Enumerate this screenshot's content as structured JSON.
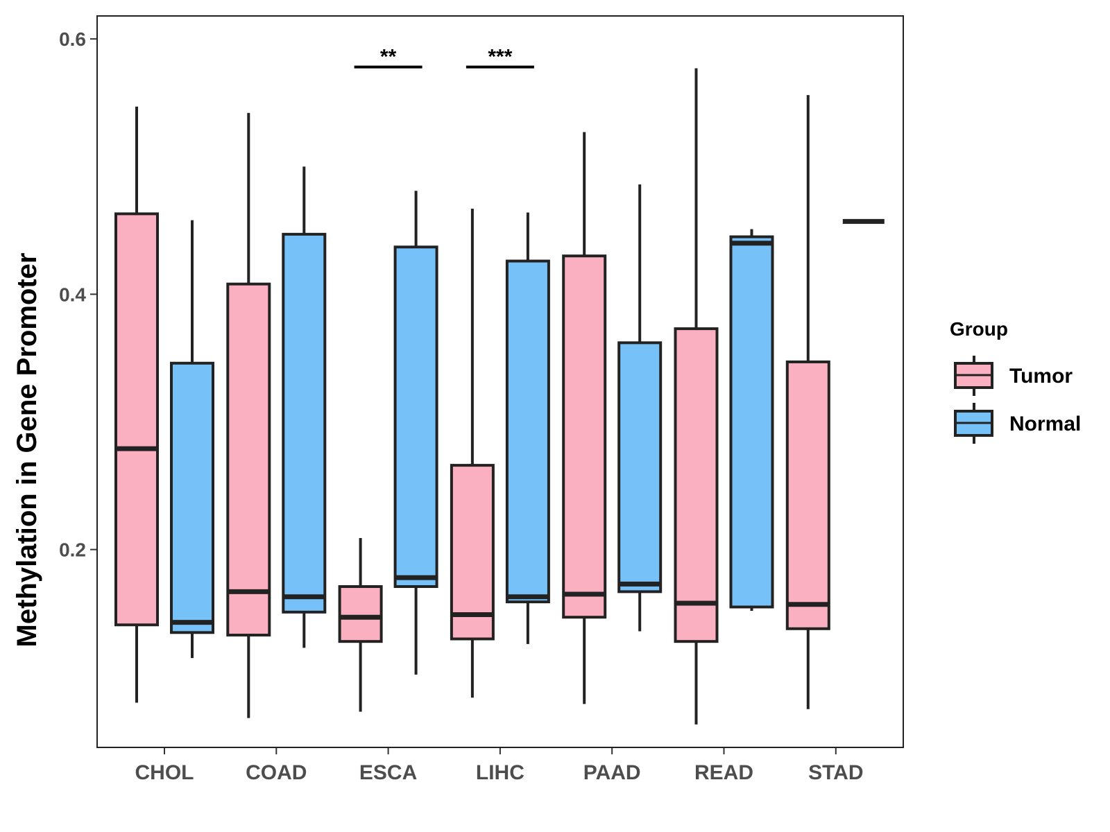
{
  "chart_data": {
    "type": "boxplot",
    "title": "",
    "xlabel": "",
    "ylabel": "Methylation in Gene Promoter",
    "ylim": [
      0.045,
      0.618
    ],
    "y_ticks": [
      0.2,
      0.4,
      0.6
    ],
    "y_tick_labels": [
      "0.2",
      "0.4",
      "0.6"
    ],
    "categories": [
      "CHOL",
      "COAD",
      "ESCA",
      "LIHC",
      "PAAD",
      "READ",
      "STAD"
    ],
    "legend": {
      "title": "Group",
      "position": "right",
      "items": [
        {
          "label": "Tumor",
          "color": "#fbb0c1"
        },
        {
          "label": "Normal",
          "color": "#77c1f9"
        }
      ]
    },
    "series": [
      {
        "name": "Tumor",
        "color": "#fbb0c1",
        "boxes": [
          {
            "category": "CHOL",
            "min": 0.08,
            "q1": 0.141,
            "median": 0.279,
            "q3": 0.463,
            "max": 0.547
          },
          {
            "category": "COAD",
            "min": 0.068,
            "q1": 0.133,
            "median": 0.167,
            "q3": 0.408,
            "max": 0.542
          },
          {
            "category": "ESCA",
            "min": 0.073,
            "q1": 0.128,
            "median": 0.147,
            "q3": 0.171,
            "max": 0.209
          },
          {
            "category": "LIHC",
            "min": 0.084,
            "q1": 0.13,
            "median": 0.149,
            "q3": 0.266,
            "max": 0.467
          },
          {
            "category": "PAAD",
            "min": 0.079,
            "q1": 0.147,
            "median": 0.165,
            "q3": 0.43,
            "max": 0.527
          },
          {
            "category": "READ",
            "min": 0.063,
            "q1": 0.128,
            "median": 0.158,
            "q3": 0.373,
            "max": 0.577
          },
          {
            "category": "STAD",
            "min": 0.075,
            "q1": 0.138,
            "median": 0.157,
            "q3": 0.347,
            "max": 0.556
          }
        ]
      },
      {
        "name": "Normal",
        "color": "#77c1f9",
        "boxes": [
          {
            "category": "CHOL",
            "min": 0.115,
            "q1": 0.135,
            "median": 0.143,
            "q3": 0.346,
            "max": 0.458
          },
          {
            "category": "COAD",
            "min": 0.123,
            "q1": 0.151,
            "median": 0.163,
            "q3": 0.447,
            "max": 0.5
          },
          {
            "category": "ESCA",
            "min": 0.102,
            "q1": 0.171,
            "median": 0.178,
            "q3": 0.437,
            "max": 0.481
          },
          {
            "category": "LIHC",
            "min": 0.126,
            "q1": 0.159,
            "median": 0.163,
            "q3": 0.426,
            "max": 0.464
          },
          {
            "category": "PAAD",
            "min": 0.136,
            "q1": 0.167,
            "median": 0.173,
            "q3": 0.362,
            "max": 0.486
          },
          {
            "category": "READ",
            "min": 0.152,
            "q1": 0.155,
            "median": 0.44,
            "q3": 0.445,
            "max": 0.451
          },
          {
            "category": "STAD",
            "min": 0.457,
            "q1": 0.457,
            "median": 0.457,
            "q3": 0.457,
            "max": 0.457
          }
        ]
      }
    ],
    "annotations": [
      {
        "category": "ESCA",
        "text": "**",
        "y": 0.578
      },
      {
        "category": "LIHC",
        "text": "***",
        "y": 0.578
      }
    ]
  }
}
